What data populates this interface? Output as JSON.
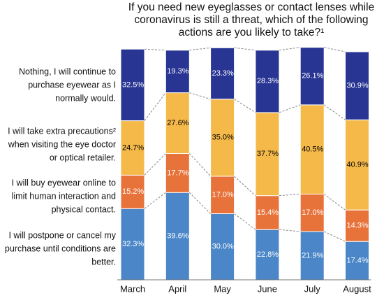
{
  "chart_data": {
    "type": "stacked_bar",
    "title": "If you need new eyeglasses or contact lenses while coronavirus is still a threat, which of the following actions are you likely to take?¹",
    "categories": [
      "March",
      "April",
      "May",
      "June",
      "July",
      "August"
    ],
    "series": [
      {
        "name": "I will postpone or cancel my purchase until conditions are better.",
        "color": "#4a86c8",
        "text_color": "#ffffff",
        "values": [
          32.3,
          39.6,
          30.0,
          22.8,
          21.9,
          17.4
        ],
        "value_labels": [
          "32.3%",
          "39.6%",
          "30.0%",
          "22.8%",
          "21.9%",
          "17.4%"
        ]
      },
      {
        "name": "I will buy eyewear online to limit human interaction and physical contact.",
        "color": "#e8733a",
        "text_color": "#ffffff",
        "values": [
          15.2,
          17.7,
          17.0,
          15.4,
          17.0,
          14.3
        ],
        "value_labels": [
          "15.2%",
          "17.7%",
          "17.0%",
          "15.4%",
          "17.0%",
          "14.3%"
        ]
      },
      {
        "name": "I will take extra precautions² when visiting the eye doctor or optical retailer.",
        "color": "#f5b94a",
        "text_color": "#000000",
        "values": [
          24.7,
          27.6,
          35.0,
          37.7,
          40.5,
          40.9
        ],
        "value_labels": [
          "24.7%",
          "27.6%",
          "35.0%",
          "37.7%",
          "40.5%",
          "40.9%"
        ]
      },
      {
        "name": "Nothing, I will continue to purchase eyewear as I normally would.",
        "color": "#283593",
        "text_color": "#ffffff",
        "values": [
          32.5,
          19.3,
          23.3,
          28.3,
          26.1,
          30.9
        ],
        "value_labels": [
          "32.5%",
          "19.3%",
          "23.3%",
          "28.3%",
          "26.1%",
          "30.9%"
        ]
      }
    ]
  }
}
